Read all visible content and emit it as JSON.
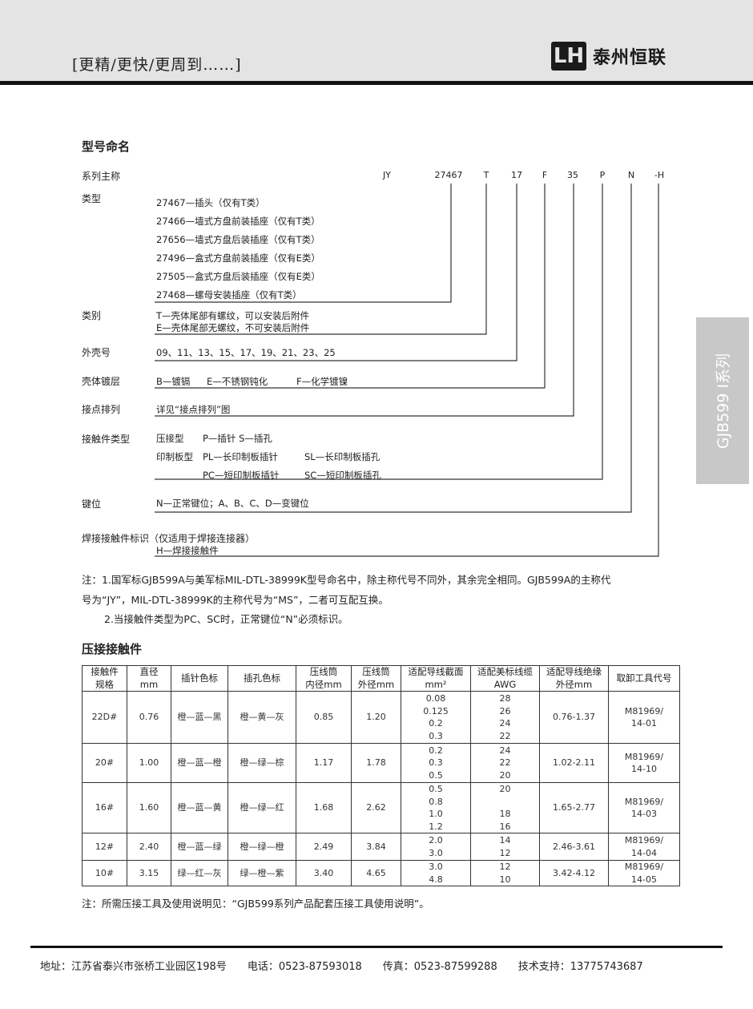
{
  "header": {
    "slogan": "[更精/更快/更周到……]",
    "logo_mark": "LH",
    "company": "泰州恒联"
  },
  "side_tab": "GJB599 I系列",
  "naming": {
    "title": "型号命名",
    "series_label": "系列主称",
    "codes": [
      "JY",
      "27467",
      "T",
      "17",
      "F",
      "35",
      "P",
      "N",
      "-H"
    ],
    "type_label": "类型",
    "types": [
      "27467—插头（仅有T类）",
      "27466—墙式方盘前装插座（仅有T类）",
      "27656—墙式方盘后装插座（仅有T类）",
      "27496—盒式方盘前装插座（仅有E类）",
      "27505—盒式方盘后装插座（仅有E类）",
      "27468—螺母安装插座（仅有T类）"
    ],
    "class_label": "类别",
    "classes": [
      "T—壳体尾部有螺纹，可以安装后附件",
      "E—壳体尾部无螺纹，不可安装后附件"
    ],
    "shell_label": "外壳号",
    "shells": "09、11、13、15、17、19、21、23、25",
    "plating_label": "壳体镀层",
    "plating": [
      "B—镀镉",
      "E—不锈钢钝化",
      "F—化学镀镍"
    ],
    "arrangement_label": "接点排列",
    "arrangement": "详见“接点排列”图",
    "contact_label": "接触件类型",
    "contact_rows": [
      [
        "压接型",
        "P—插针 S—插孔",
        ""
      ],
      [
        "印制板型",
        "PL—长印制板插针",
        "SL—长印制板插孔"
      ],
      [
        "",
        "PC—短印制板插针",
        "SC—短印制板插孔"
      ]
    ],
    "key_label": "键位",
    "key": "N—正常键位；A、B、C、D—变键位",
    "solder_label": "焊接接触件标识（仅适用于焊接连接器）",
    "solder": "H—焊接接触件"
  },
  "notes": [
    "注：1.国军标GJB599A与美军标MIL-DTL-38999K型号命名中，除主称代号不同外，其余完全相同。GJB599A的主称代",
    "号为“JY”，MIL-DTL-38999K的主称代号为“MS”，二者可互配互换。",
    "2.当接触件类型为PC、SC时，正常键位“N”必须标识。"
  ],
  "crimp": {
    "title": "压接接触件",
    "headers": [
      [
        "接触件",
        "规格"
      ],
      [
        "直径",
        "mm"
      ],
      [
        "插针色标"
      ],
      [
        "插孔色标"
      ],
      [
        "压线筒",
        "内径mm"
      ],
      [
        "压线筒",
        "外径mm"
      ],
      [
        "适配导线截面",
        "mm²"
      ],
      [
        "适配美标线缆",
        "AWG"
      ],
      [
        "适配导线绝缘",
        "外径mm"
      ],
      [
        "取卸工具代号"
      ]
    ],
    "rows": [
      {
        "size": "22D#",
        "dia": "0.76",
        "pin": "橙—蓝—黑",
        "socket": "橙—黄—灰",
        "inner": "0.85",
        "outer": "1.20",
        "section": [
          "0.08",
          "0.125",
          "0.2",
          "0.3"
        ],
        "awg": [
          "28",
          "26",
          "24",
          "22"
        ],
        "insul": "0.76-1.37",
        "tool": [
          "M81969/",
          "14-01"
        ]
      },
      {
        "size": "20#",
        "dia": "1.00",
        "pin": "橙—蓝—橙",
        "socket": "橙—绿—棕",
        "inner": "1.17",
        "outer": "1.78",
        "section": [
          "0.2",
          "0.3",
          "0.5"
        ],
        "awg": [
          "24",
          "22",
          "20"
        ],
        "insul": "1.02-2.11",
        "tool": [
          "M81969/",
          "14-10"
        ]
      },
      {
        "size": "16#",
        "dia": "1.60",
        "pin": "橙—蓝—黄",
        "socket": "橙—绿—红",
        "inner": "1.68",
        "outer": "2.62",
        "section": [
          "0.5",
          "0.8",
          "1.0",
          "1.2"
        ],
        "awg": [
          "20",
          "",
          "18",
          "16"
        ],
        "insul": "1.65-2.77",
        "tool": [
          "M81969/",
          "14-03"
        ]
      },
      {
        "size": "12#",
        "dia": "2.40",
        "pin": "橙—蓝—绿",
        "socket": "橙—绿—橙",
        "inner": "2.49",
        "outer": "3.84",
        "section": [
          "2.0",
          "3.0"
        ],
        "awg": [
          "14",
          "12"
        ],
        "insul": "2.46-3.61",
        "tool": [
          "M81969/",
          "14-04"
        ]
      },
      {
        "size": "10#",
        "dia": "3.15",
        "pin": "绿—红—灰",
        "socket": "绿—橙—紫",
        "inner": "3.40",
        "outer": "4.65",
        "section": [
          "3.0",
          "4.8"
        ],
        "awg": [
          "12",
          "10"
        ],
        "insul": "3.42-4.12",
        "tool": [
          "M81969/",
          "14-05"
        ]
      }
    ],
    "note": "注：所需压接工具及使用说明见：“GJB599系列产品配套压接工具使用说明”。"
  },
  "footer": {
    "address": "地址：江苏省泰兴市张桥工业园区198号",
    "phone": "电话：0523-87593018",
    "fax": "传真：0523-87599288",
    "support": "技术支持：13775743687"
  }
}
